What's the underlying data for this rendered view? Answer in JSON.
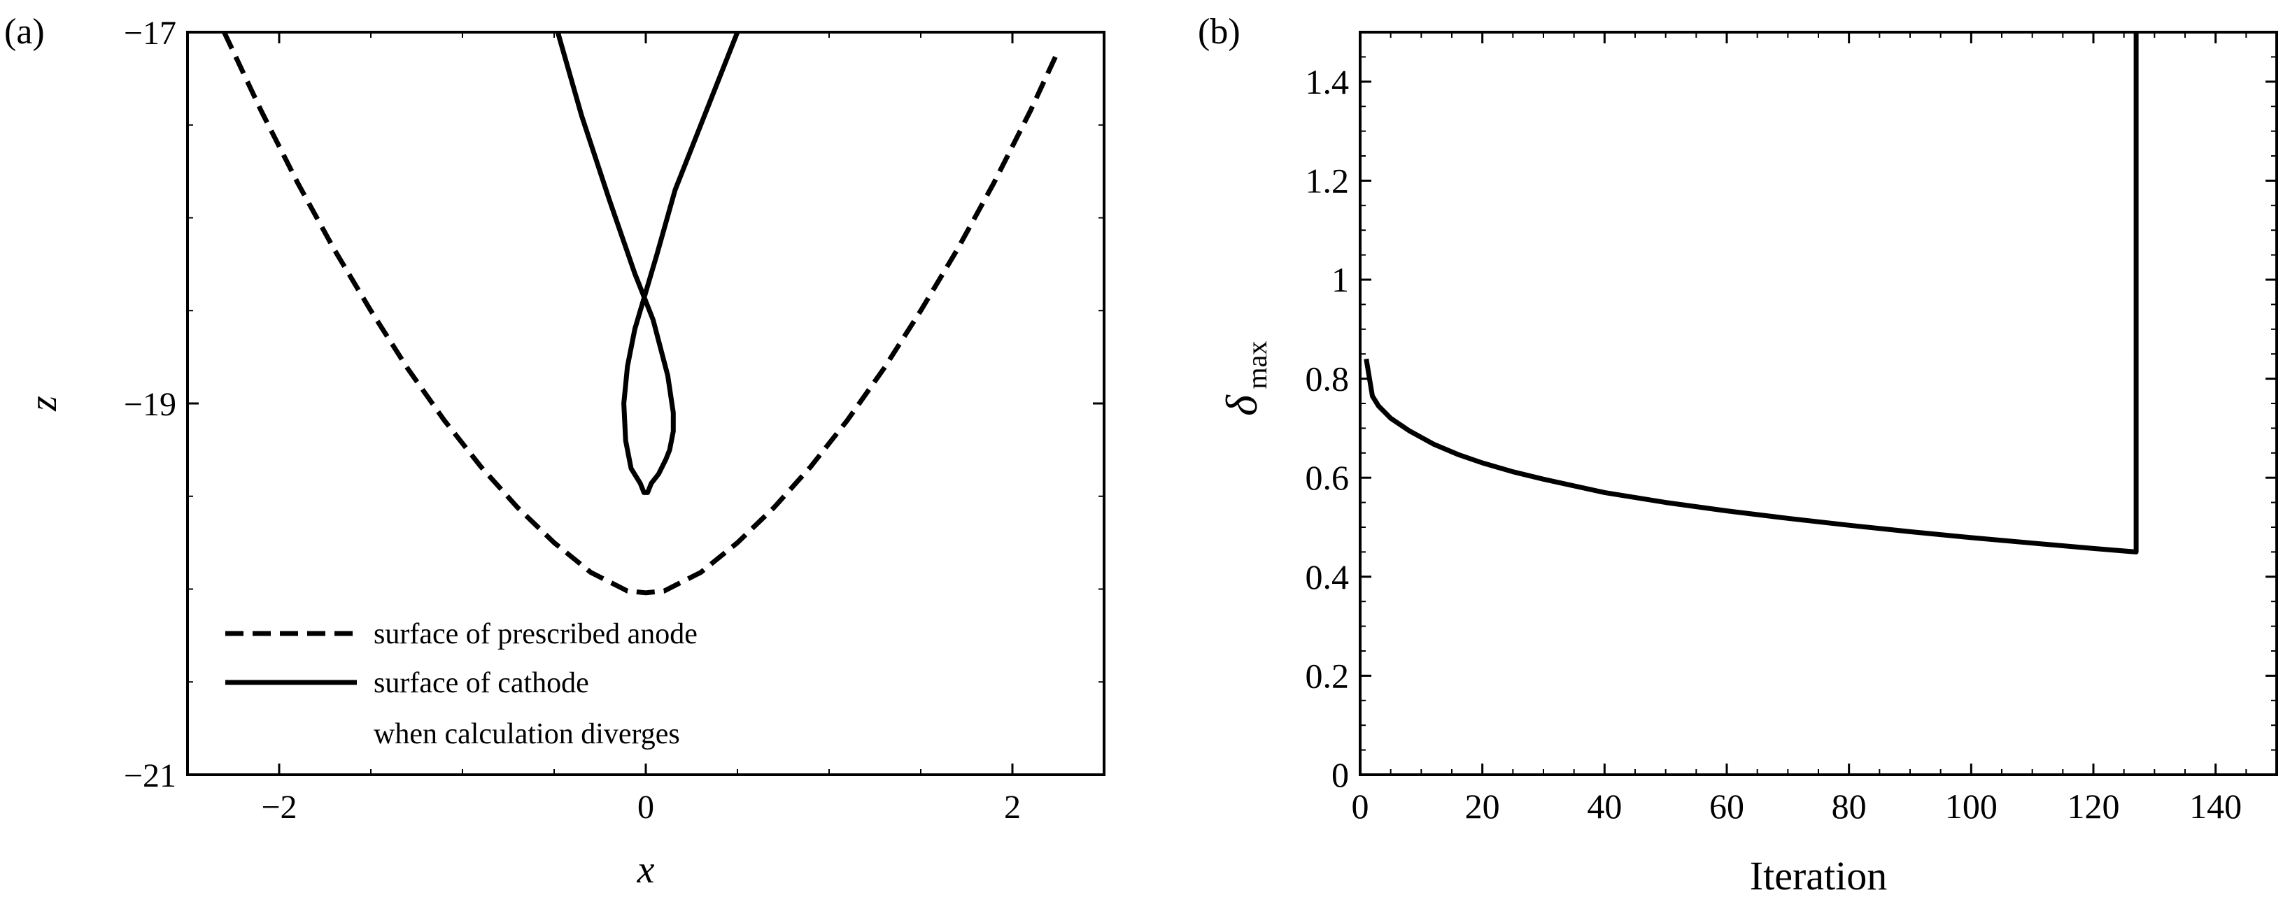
{
  "chart_data": [
    {
      "panel_label": "(a)",
      "type": "line",
      "xlabel": "x",
      "ylabel": "z",
      "xlim": [
        -2.5,
        2.5
      ],
      "ylim": [
        -21,
        -17
      ],
      "xticks": [
        -2,
        0,
        2
      ],
      "yticks": [
        -21,
        -19,
        -17
      ],
      "xtick_labels": [
        "−2",
        "0",
        "2"
      ],
      "ytick_labels": [
        "−21",
        "−19",
        "−17"
      ],
      "grid": false,
      "legend": {
        "placement": "bottom-left",
        "entries": [
          {
            "label": "surface of prescribed anode",
            "style": "dashed"
          },
          {
            "label": "surface of cathode",
            "style": "solid"
          },
          {
            "label": "when calculation diverges",
            "style": "none"
          }
        ]
      },
      "series": [
        {
          "style": "dashed",
          "x": [
            -2.3,
            -2.1,
            -1.9,
            -1.7,
            -1.5,
            -1.3,
            -1.1,
            -0.9,
            -0.7,
            -0.5,
            -0.3,
            -0.1,
            0.0,
            0.1,
            0.3,
            0.5,
            0.7,
            0.9,
            1.1,
            1.3,
            1.5,
            1.7,
            1.9,
            2.1,
            2.25
          ],
          "y": [
            -17.0,
            -17.42,
            -17.81,
            -18.17,
            -18.5,
            -18.81,
            -19.09,
            -19.34,
            -19.56,
            -19.75,
            -19.91,
            -20.01,
            -20.02,
            -20.01,
            -19.91,
            -19.75,
            -19.56,
            -19.34,
            -19.09,
            -18.81,
            -18.5,
            -18.17,
            -17.81,
            -17.42,
            -17.1
          ]
        },
        {
          "style": "solid",
          "x": [
            -0.48,
            -0.35,
            -0.2,
            -0.06,
            0.04,
            0.12,
            0.15,
            0.15,
            0.13,
            0.11,
            0.07,
            0.03,
            0.01,
            0.0,
            -0.01,
            -0.03,
            -0.08,
            -0.11,
            -0.12,
            -0.1,
            -0.06,
            0.0,
            0.06,
            0.16,
            0.32,
            0.5
          ],
          "y": [
            -17.0,
            -17.45,
            -17.9,
            -18.3,
            -18.55,
            -18.85,
            -19.05,
            -19.15,
            -19.25,
            -19.3,
            -19.38,
            -19.43,
            -19.48,
            -19.48,
            -19.48,
            -19.43,
            -19.35,
            -19.2,
            -19.0,
            -18.8,
            -18.6,
            -18.4,
            -18.2,
            -17.85,
            -17.45,
            -17.0
          ]
        }
      ]
    },
    {
      "panel_label": "(b)",
      "type": "line",
      "xlabel": "Iteration",
      "ylabel": "δ",
      "ylabel_subscript": "max",
      "xlim": [
        0,
        150
      ],
      "ylim": [
        0,
        1.5
      ],
      "xticks": [
        0,
        20,
        40,
        60,
        80,
        100,
        120,
        140
      ],
      "yticks": [
        0,
        0.2,
        0.4,
        0.6,
        0.8,
        1.0,
        1.2,
        1.4
      ],
      "xtick_labels": [
        "0",
        "20",
        "40",
        "60",
        "80",
        "100",
        "120",
        "140"
      ],
      "ytick_labels": [
        "0",
        "0.2",
        "0.4",
        "0.6",
        "0.8",
        "1",
        "1.2",
        "1.4"
      ],
      "grid": false,
      "series": [
        {
          "style": "solid",
          "x": [
            1,
            2,
            3,
            5,
            8,
            12,
            16,
            20,
            25,
            30,
            40,
            50,
            60,
            70,
            80,
            90,
            100,
            110,
            120,
            127,
            127,
            127
          ],
          "y": [
            0.84,
            0.765,
            0.745,
            0.72,
            0.695,
            0.668,
            0.647,
            0.63,
            0.612,
            0.597,
            0.57,
            0.55,
            0.533,
            0.518,
            0.504,
            0.491,
            0.479,
            0.468,
            0.457,
            0.45,
            1.0,
            1.5
          ]
        }
      ]
    }
  ]
}
